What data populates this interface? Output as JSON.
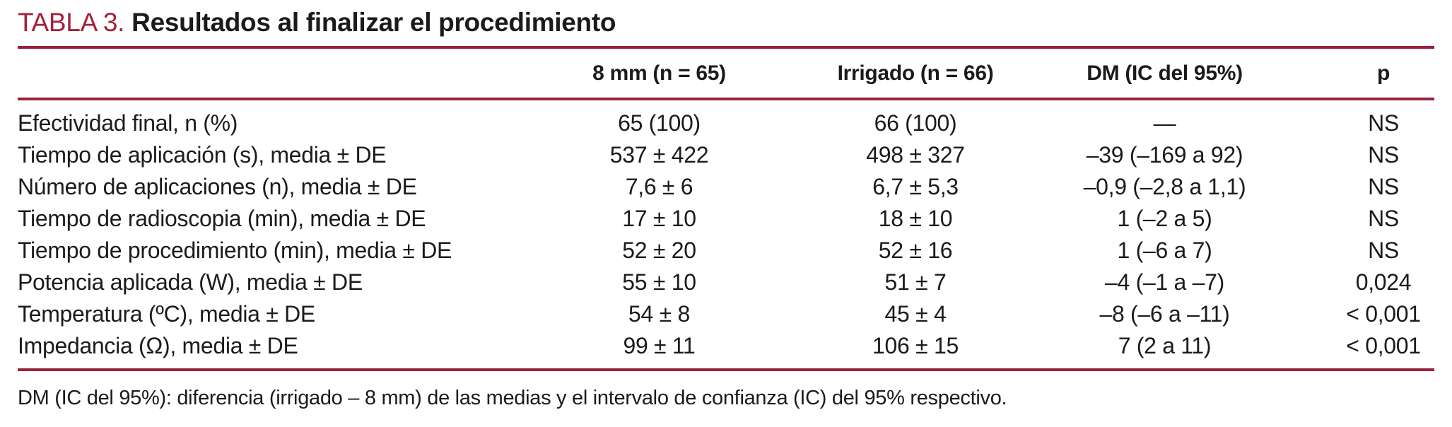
{
  "title": {
    "label": "TABLA 3.",
    "text": "Resultados al finalizar el procedimiento"
  },
  "table": {
    "columns": [
      "",
      "8 mm (n = 65)",
      "Irrigado (n = 66)",
      "DM (IC del 95%)",
      "p"
    ],
    "rows": [
      {
        "label": "Efectividad final, n (%)",
        "mm8": "65 (100)",
        "irrigado": "66 (100)",
        "dm": "—",
        "p": "NS"
      },
      {
        "label": "Tiempo de aplicación (s), media ± DE",
        "mm8": "537 ± 422",
        "irrigado": "498 ± 327",
        "dm": "–39 (–169 a 92)",
        "p": "NS"
      },
      {
        "label": "Número de aplicaciones (n), media ± DE",
        "mm8": "7,6 ± 6",
        "irrigado": "6,7 ± 5,3",
        "dm": "–0,9 (–2,8 a 1,1)",
        "p": "NS"
      },
      {
        "label": "Tiempo de radioscopia (min), media ± DE",
        "mm8": "17 ± 10",
        "irrigado": "18 ± 10",
        "dm": "1 (–2 a 5)",
        "p": "NS"
      },
      {
        "label": "Tiempo de procedimiento (min), media ± DE",
        "mm8": "52 ± 20",
        "irrigado": "52 ± 16",
        "dm": "1 (–6 a 7)",
        "p": "NS"
      },
      {
        "label": "Potencia aplicada (W), media ± DE",
        "mm8": "55 ± 10",
        "irrigado": "51 ± 7",
        "dm": "–4 (–1 a –7)",
        "p": "0,024"
      },
      {
        "label": "Temperatura (ºC), media ± DE",
        "mm8": "54 ± 8",
        "irrigado": "45 ± 4",
        "dm": "–8 (–6 a –11)",
        "p": "< 0,001"
      },
      {
        "label": "Impedancia (Ω), media ± DE",
        "mm8": "99 ± 11",
        "irrigado": "106 ± 15",
        "dm": "7 (2 a 11)",
        "p": "< 0,001"
      }
    ]
  },
  "footnote": "DM (IC del 95%): diferencia (irrigado – 8 mm) de las medias y el intervalo de confianza (IC) del 95% respectivo.",
  "colors": {
    "accent_red": "#A6203A",
    "rule_maroon": "#98213B",
    "text": "#1B1B1B"
  }
}
